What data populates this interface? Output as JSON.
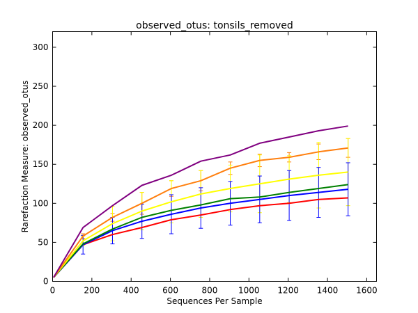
{
  "chart_data": {
    "type": "line",
    "title": "observed_otus: tonsils_removed",
    "xlabel": "Sequences Per Sample",
    "ylabel": "Rarefaction Measure: observed_otus",
    "xlim": [
      0,
      1650
    ],
    "ylim": [
      0,
      320
    ],
    "xticks": [
      0,
      200,
      400,
      600,
      800,
      1000,
      1200,
      1400,
      1600
    ],
    "yticks": [
      0,
      50,
      100,
      150,
      200,
      250,
      300
    ],
    "grid": false,
    "x": [
      5,
      155,
      305,
      455,
      605,
      755,
      905,
      1055,
      1205,
      1355,
      1505
    ],
    "series": [
      {
        "color": "#800080",
        "values": [
          5,
          69,
          97,
          123,
          136,
          154,
          162,
          177,
          185,
          193,
          199
        ],
        "errors": []
      },
      {
        "color": "#ff7f0e",
        "values": [
          5,
          58,
          82,
          100,
          119,
          129,
          145,
          155,
          159,
          166,
          171
        ],
        "errors": [
          0,
          3,
          5,
          14,
          10,
          13,
          8,
          8,
          6,
          10,
          12
        ]
      },
      {
        "color": "#ffff00",
        "values": [
          5,
          52,
          74,
          90,
          102,
          112,
          119,
          125,
          131,
          136,
          140
        ],
        "errors": [
          0,
          6,
          22,
          24,
          27,
          30,
          30,
          37,
          30,
          42,
          43
        ]
      },
      {
        "color": "#008000",
        "values": [
          5,
          48,
          67,
          82,
          91,
          98,
          106,
          108,
          114,
          119,
          124
        ],
        "errors": []
      },
      {
        "color": "#0000ff",
        "values": [
          5,
          47,
          65,
          77,
          86,
          94,
          100,
          105,
          110,
          114,
          118
        ],
        "errors": [
          0,
          12,
          17,
          22,
          25,
          26,
          28,
          30,
          32,
          32,
          34
        ]
      },
      {
        "color": "#ff0000",
        "values": [
          5,
          47,
          60,
          69,
          79,
          85,
          92,
          97,
          100,
          105,
          107
        ],
        "errors": []
      }
    ]
  }
}
